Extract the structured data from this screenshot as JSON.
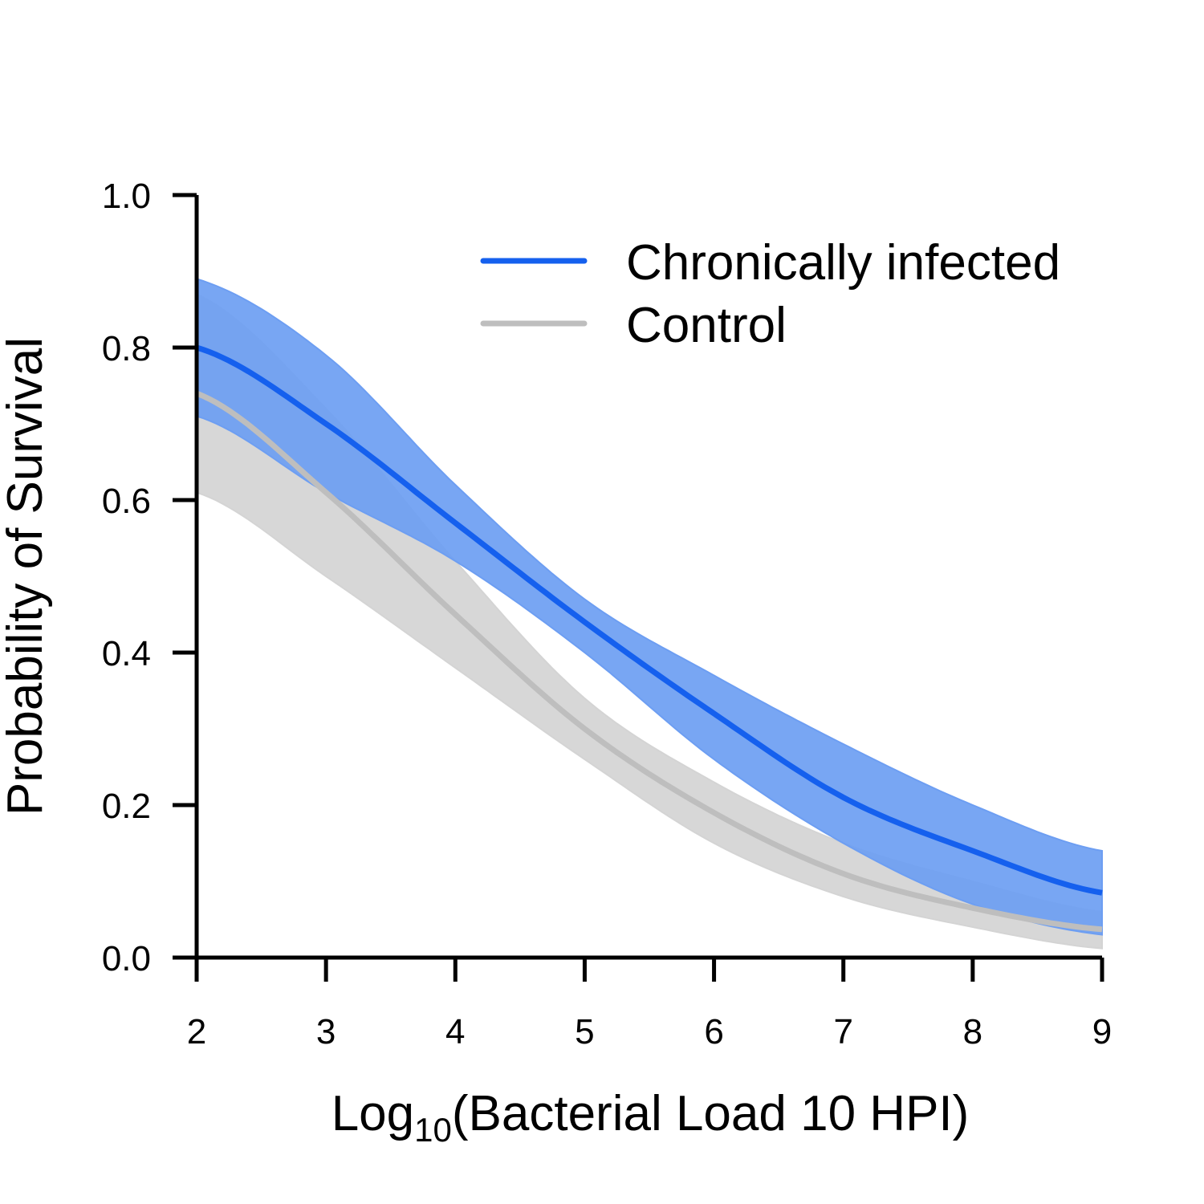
{
  "chart_data": {
    "type": "line",
    "xlabel": {
      "prefix": "Log",
      "subscript": "10",
      "suffix": "(Bacterial Load 10 HPI)"
    },
    "ylabel": "Probability of Survival",
    "xlim": [
      2,
      9
    ],
    "ylim": [
      0,
      1
    ],
    "x_ticks": [
      "2",
      "3",
      "4",
      "5",
      "6",
      "7",
      "8",
      "9"
    ],
    "y_ticks": [
      "0.0",
      "0.2",
      "0.4",
      "0.6",
      "0.8",
      "1.0"
    ],
    "grid": false,
    "legend_position": "top-right",
    "x": [
      2,
      3,
      4,
      5,
      6,
      7,
      8,
      9
    ],
    "series": [
      {
        "name": "Chronically infected",
        "color": "#1560ee",
        "band_color": "#6d9ef2",
        "values": [
          0.8,
          0.7,
          0.57,
          0.44,
          0.32,
          0.21,
          0.14,
          0.085
        ],
        "lower": [
          0.71,
          0.61,
          0.52,
          0.4,
          0.26,
          0.15,
          0.07,
          0.03
        ],
        "upper": [
          0.89,
          0.79,
          0.62,
          0.47,
          0.37,
          0.28,
          0.2,
          0.14
        ]
      },
      {
        "name": "Control",
        "color": "#bebebe",
        "band_color": "#d4d4d4",
        "values": [
          0.74,
          0.61,
          0.45,
          0.3,
          0.19,
          0.11,
          0.065,
          0.037
        ],
        "lower": [
          0.61,
          0.5,
          0.38,
          0.26,
          0.15,
          0.08,
          0.04,
          0.012
        ],
        "upper": [
          0.87,
          0.72,
          0.52,
          0.34,
          0.23,
          0.15,
          0.1,
          0.06
        ]
      }
    ]
  }
}
